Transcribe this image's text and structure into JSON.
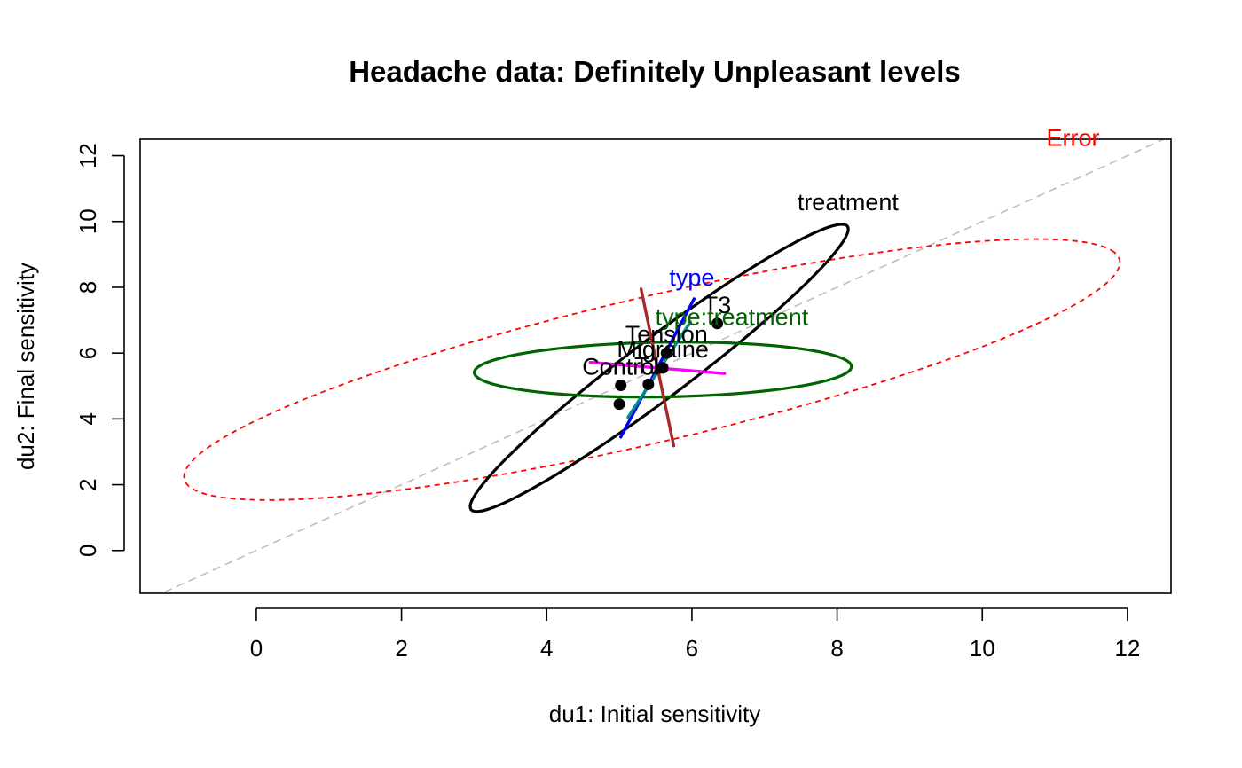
{
  "chart_data": {
    "type": "scatter",
    "title": "Headache data: Definitely Unpleasant levels",
    "xlabel": "du1: Initial sensitivity",
    "ylabel": "du2: Final sensitivity",
    "xlim": [
      -1.6,
      12.6
    ],
    "ylim": [
      -1.3,
      12.5
    ],
    "xticks": [
      "0",
      "2",
      "4",
      "6",
      "8",
      "10",
      "12"
    ],
    "yticks": [
      "0",
      "2",
      "4",
      "6",
      "8",
      "10",
      "12"
    ],
    "grid": false,
    "reference_line": {
      "style": "dashed",
      "color": "#bebebe",
      "slope": 1,
      "intercept": 0
    },
    "points": [
      {
        "label": "T3",
        "x": 6.35,
        "y": 6.9
      },
      {
        "label": "Tension",
        "x": 5.65,
        "y": 6.0
      },
      {
        "label": "Migraine",
        "x": 5.6,
        "y": 5.55
      },
      {
        "label": "T1",
        "x": 5.4,
        "y": 5.05
      },
      {
        "label": "Control",
        "x": 5.02,
        "y": 5.02
      },
      {
        "label": "",
        "x": 5.0,
        "y": 4.45
      }
    ],
    "ellipses": [
      {
        "label": "Error",
        "color": "#ff0000",
        "style": "dashed",
        "center": [
          5.45,
          5.5
        ],
        "semi_axes": [
          7.3,
          2.0
        ],
        "angle_deg": 29.2
      },
      {
        "label": "treatment",
        "color": "#000000",
        "style": "solid",
        "center": [
          5.55,
          5.55
        ],
        "semi_axes": [
          5.05,
          0.58
        ],
        "angle_deg": 59.6
      },
      {
        "label": "type:treatment",
        "color": "#006400",
        "style": "solid",
        "center": [
          5.6,
          5.5
        ],
        "semi_axes": [
          2.6,
          0.83
        ],
        "angle_deg": 2.2
      }
    ],
    "segments": [
      {
        "label": "type",
        "color": "#0000ff",
        "from": [
          5.02,
          3.45
        ],
        "to": [
          6.03,
          7.65
        ]
      },
      {
        "label": "",
        "color": "#ff00ff",
        "from": [
          4.6,
          5.72
        ],
        "to": [
          6.45,
          5.38
        ]
      },
      {
        "label": "",
        "color": "#008b8b",
        "from": [
          5.12,
          4.05
        ],
        "to": [
          5.98,
          6.95
        ]
      },
      {
        "label": "",
        "color": "#a52a2a",
        "from": [
          5.3,
          7.95
        ],
        "to": [
          5.75,
          3.18
        ]
      }
    ],
    "ellipse_labels": [
      {
        "text": "Error",
        "color": "#ff0000",
        "x": 11.25,
        "y": 12.3
      },
      {
        "text": "treatment",
        "color": "#000000",
        "x": 8.15,
        "y": 10.35
      },
      {
        "text": "type",
        "color": "#0000ff",
        "x": 6.0,
        "y": 8.05
      },
      {
        "text": "type:treatment",
        "color": "#006400",
        "x": 6.55,
        "y": 6.85
      }
    ]
  }
}
